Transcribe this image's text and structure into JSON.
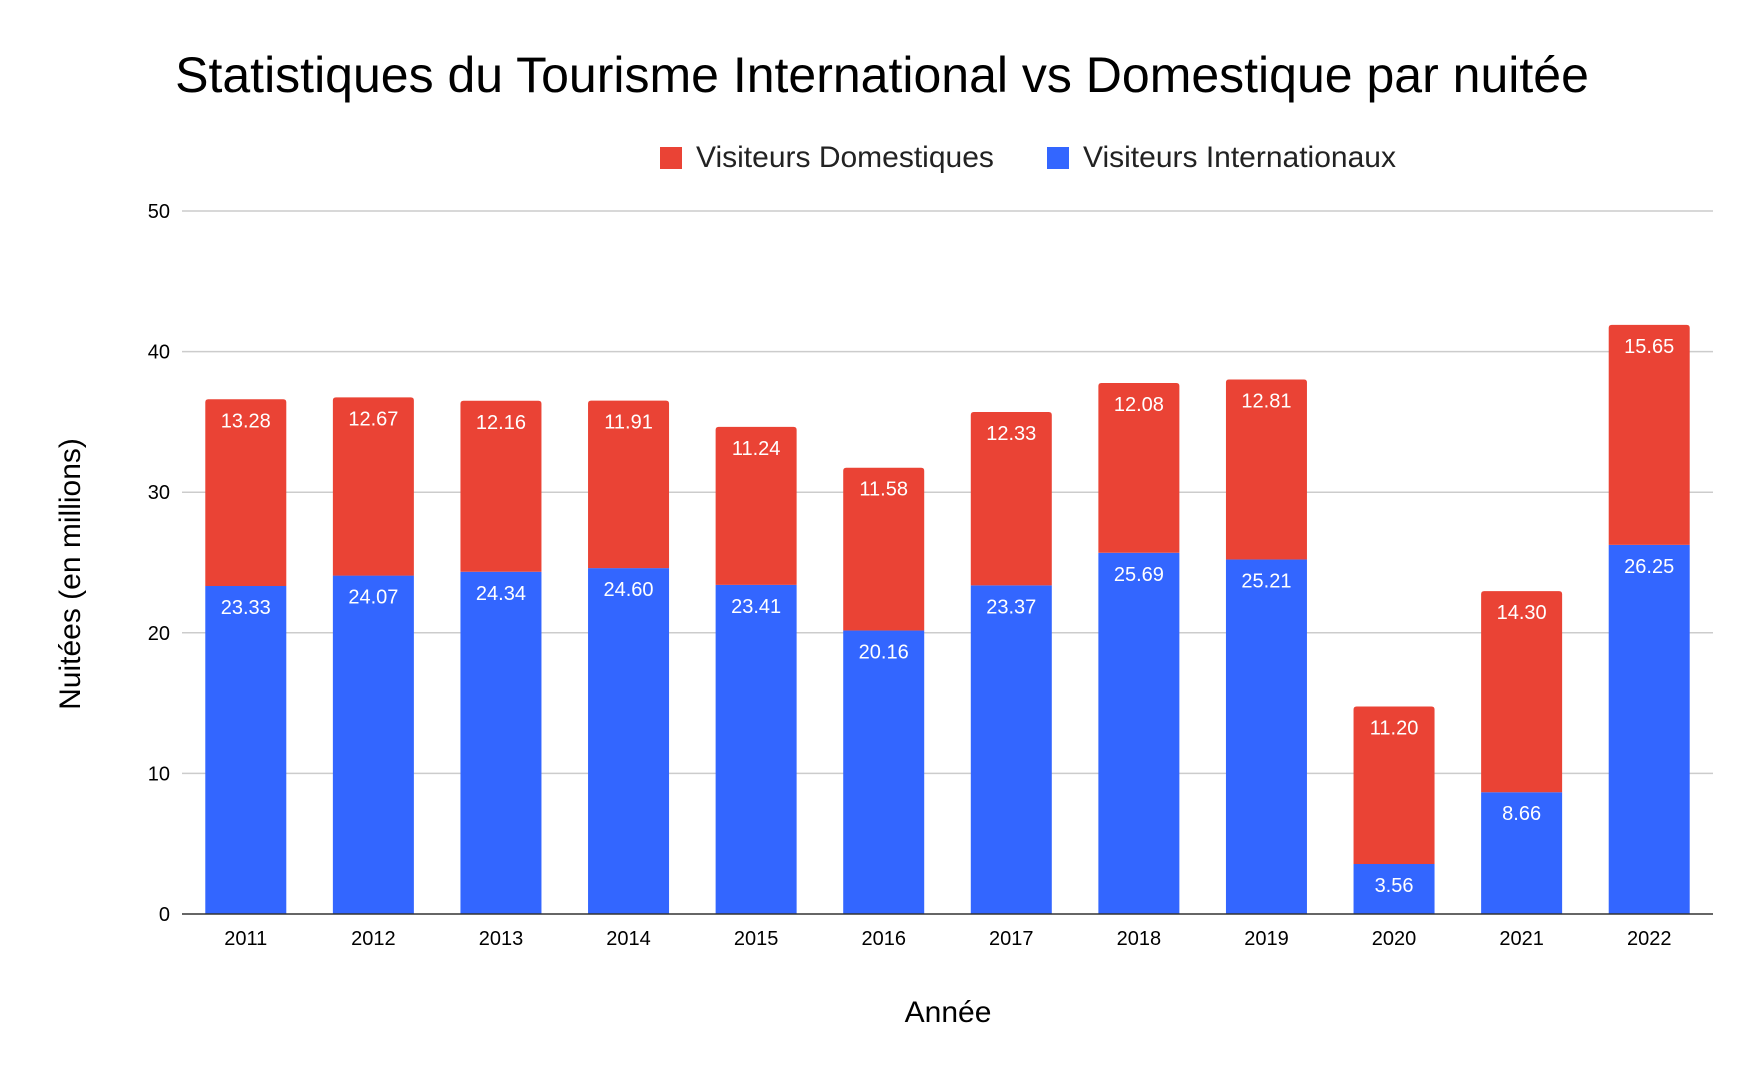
{
  "chart_data": {
    "type": "bar",
    "stacked": true,
    "title": "Statistiques du Tourisme International vs Domestique par nuitée",
    "xlabel": "Année",
    "ylabel": "Nuitées (en millions)",
    "ylim": [
      0,
      50
    ],
    "yticks": [
      "0",
      "10",
      "20",
      "30",
      "40",
      "50"
    ],
    "grid": true,
    "legend_position": "top",
    "categories": [
      "2011",
      "2012",
      "2013",
      "2014",
      "2015",
      "2016",
      "2017",
      "2018",
      "2019",
      "2020",
      "2021",
      "2022"
    ],
    "series": [
      {
        "name": "Visiteurs Internationaux",
        "color": "#3366ff",
        "values": [
          23.33,
          24.07,
          24.34,
          24.6,
          23.41,
          20.16,
          23.37,
          25.69,
          25.21,
          3.56,
          8.66,
          26.25
        ],
        "labels": [
          "23.33",
          "24.07",
          "24.34",
          "24.60",
          "23.41",
          "20.16",
          "23.37",
          "25.69",
          "25.21",
          "3.56",
          "8.66",
          "26.25"
        ]
      },
      {
        "name": "Visiteurs Domestiques",
        "color": "#ea4335",
        "values": [
          13.28,
          12.67,
          12.16,
          11.91,
          11.24,
          11.58,
          12.33,
          12.08,
          12.81,
          11.2,
          14.3,
          15.65
        ],
        "labels": [
          "13.28",
          "12.67",
          "12.16",
          "11.91",
          "11.24",
          "11.58",
          "12.33",
          "12.08",
          "12.81",
          "11.20",
          "14.30",
          "15.65"
        ]
      }
    ],
    "legend_order": [
      "Visiteurs Domestiques",
      "Visiteurs Internationaux"
    ]
  }
}
